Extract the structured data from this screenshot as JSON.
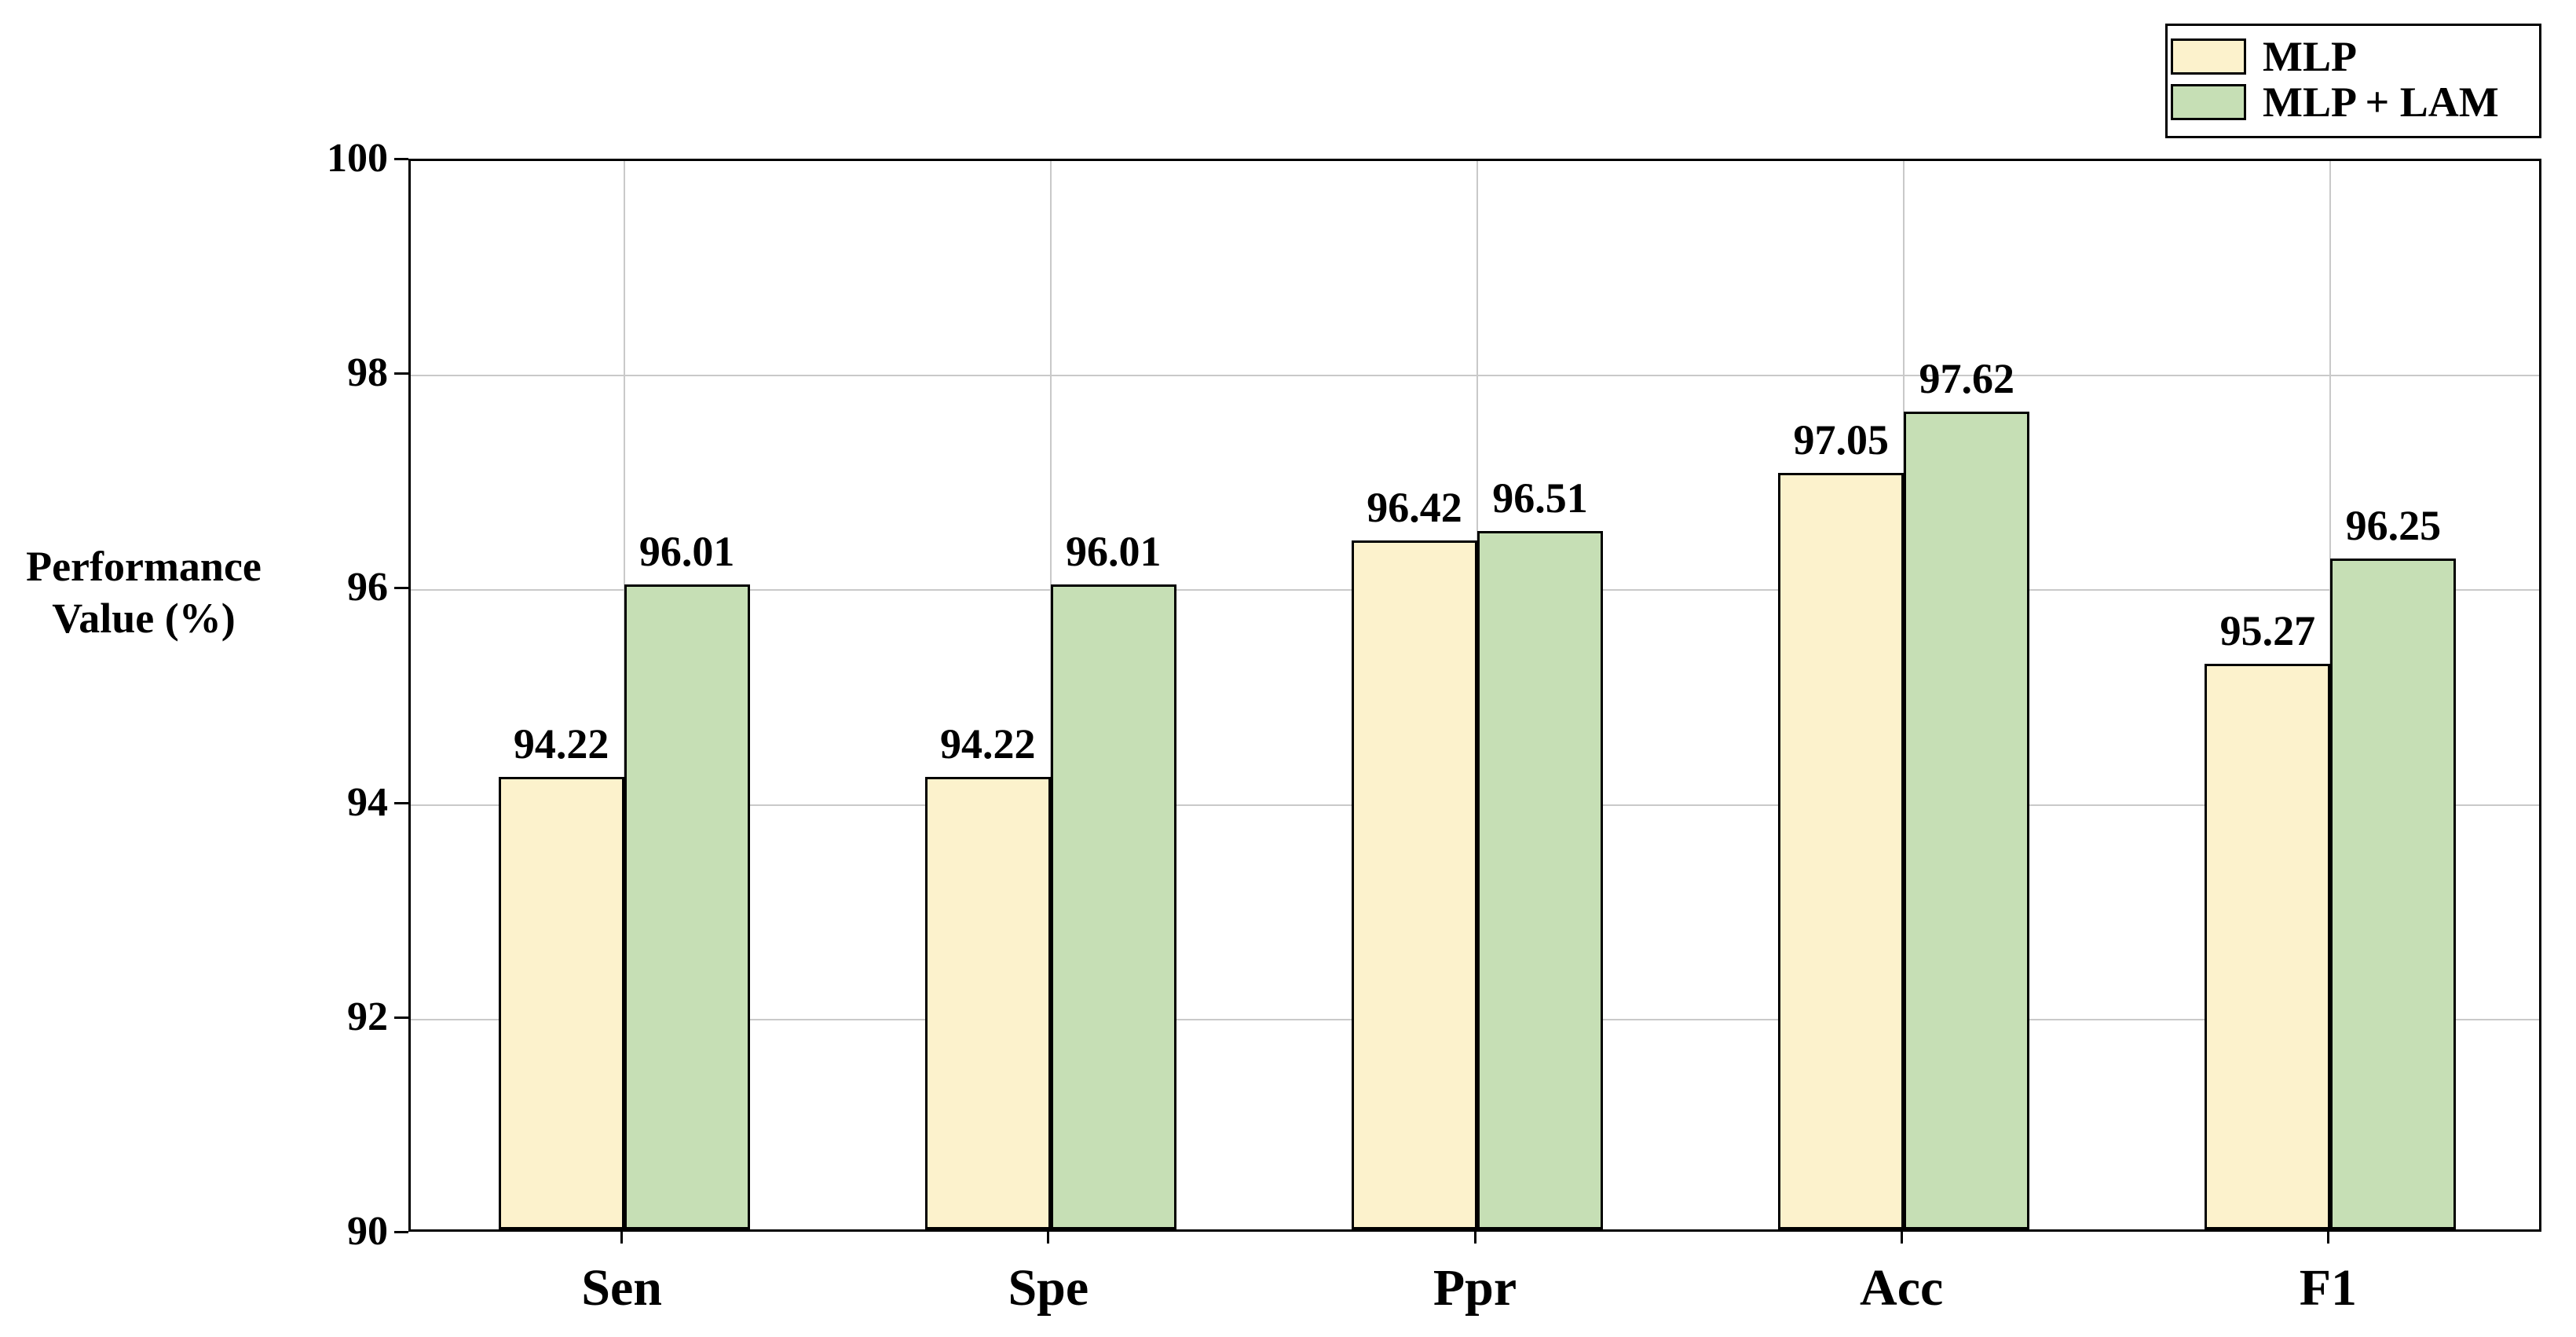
{
  "figure": {
    "background": "#ffffff"
  },
  "chart_data": {
    "type": "bar",
    "title": "",
    "xlabel": "",
    "ylabel": "Performance Value (%)",
    "ylabel_lines": [
      "Performance",
      "Value (%)"
    ],
    "categories": [
      "Sen",
      "Spe",
      "Ppr",
      "Acc",
      "F1"
    ],
    "series": [
      {
        "name": "MLP",
        "color": "#fcf2cc",
        "values": [
          94.22,
          94.22,
          96.42,
          97.05,
          95.27
        ]
      },
      {
        "name": "MLP + LAM",
        "color": "#c6dfb5",
        "values": [
          96.01,
          96.01,
          96.51,
          97.62,
          96.25
        ]
      }
    ],
    "ylim": [
      90,
      100
    ],
    "yticks": [
      90,
      92,
      94,
      96,
      98,
      100
    ],
    "grid": true,
    "legend_position": "top-right",
    "colors": {
      "bar_border": "#000000",
      "gridline": "#c9c9c9",
      "axis": "#000000",
      "text": "#000000"
    }
  }
}
